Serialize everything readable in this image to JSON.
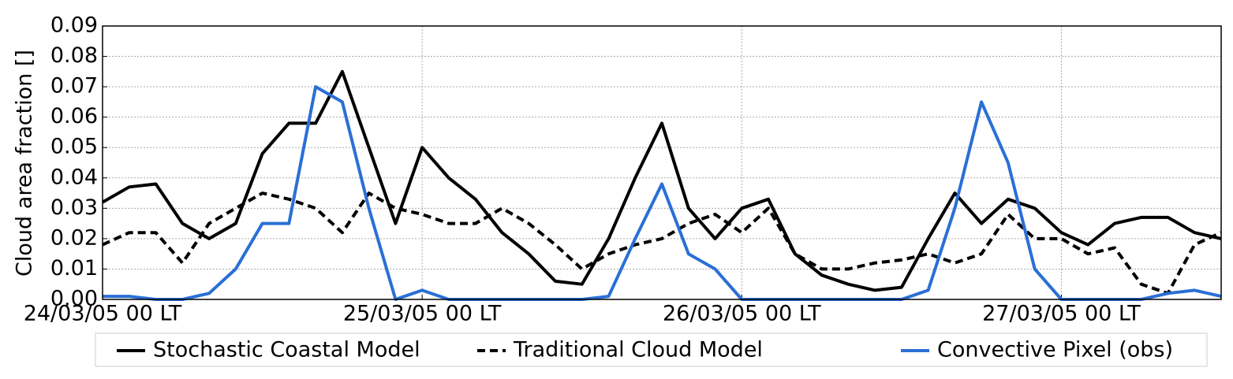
{
  "chart_data": {
    "type": "line",
    "ylabel": "Cloud area fraction []",
    "x": [
      0,
      2,
      4,
      6,
      8,
      10,
      12,
      14,
      16,
      18,
      20,
      22,
      24,
      26,
      28,
      30,
      32,
      34,
      36,
      38,
      40,
      42,
      44,
      46,
      48,
      50,
      52,
      54,
      56,
      58,
      60,
      62,
      64,
      66,
      68,
      70,
      72,
      74,
      76,
      78,
      80,
      82,
      84
    ],
    "xlim": [
      0,
      84
    ],
    "xticks": [
      {
        "value": 0,
        "label": "24/03/05 00 LT"
      },
      {
        "value": 24,
        "label": "25/03/05 00 LT"
      },
      {
        "value": 48,
        "label": "26/03/05 00 LT"
      },
      {
        "value": 72,
        "label": "27/03/05 00 LT"
      }
    ],
    "ylim": [
      0,
      0.09
    ],
    "yticks": [
      {
        "value": 0,
        "label": "0.00"
      },
      0.01,
      0.02,
      0.03,
      0.04,
      0.05,
      0.06,
      0.07,
      0.08,
      0.09
    ],
    "grid": true,
    "legend": "below",
    "series": [
      {
        "name": "Stochastic Coastal Model",
        "color": "#000000",
        "dash": "solid",
        "values": [
          0.032,
          0.037,
          0.038,
          0.025,
          0.02,
          0.025,
          0.048,
          0.058,
          0.058,
          0.075,
          0.05,
          0.025,
          0.05,
          0.04,
          0.033,
          0.022,
          0.015,
          0.006,
          0.005,
          0.02,
          0.04,
          0.058,
          0.03,
          0.02,
          0.03,
          0.033,
          0.015,
          0.008,
          0.005,
          0.003,
          0.004,
          0.02,
          0.035,
          0.025,
          0.033,
          0.03,
          0.022,
          0.018,
          0.025,
          0.027,
          0.027,
          0.022,
          0.02
        ]
      },
      {
        "name": "Traditional Cloud Model",
        "color": "#000000",
        "dash": "dashed",
        "values": [
          0.018,
          0.022,
          0.022,
          0.012,
          0.025,
          0.03,
          0.035,
          0.033,
          0.03,
          0.022,
          0.035,
          0.03,
          0.028,
          0.025,
          0.025,
          0.03,
          0.025,
          0.018,
          0.01,
          0.015,
          0.018,
          0.02,
          0.025,
          0.028,
          0.022,
          0.03,
          0.015,
          0.01,
          0.01,
          0.012,
          0.013,
          0.015,
          0.012,
          0.015,
          0.028,
          0.02,
          0.02,
          0.015,
          0.017,
          0.005,
          0.002,
          0.018,
          0.022
        ]
      },
      {
        "name": "Convective Pixel (obs)",
        "color": "#2a6fd6",
        "dash": "solid",
        "values": [
          0.001,
          0.001,
          0,
          0,
          0.002,
          0.01,
          0.025,
          0.025,
          0.07,
          0.065,
          0.03,
          0,
          0.003,
          0,
          0,
          0,
          0,
          0,
          0,
          0.001,
          0.02,
          0.038,
          0.015,
          0.01,
          0,
          0,
          0,
          0,
          0,
          0,
          0,
          0.003,
          0.03,
          0.065,
          0.045,
          0.01,
          0,
          0,
          0,
          0,
          0.002,
          0.003,
          0.001
        ]
      }
    ]
  }
}
